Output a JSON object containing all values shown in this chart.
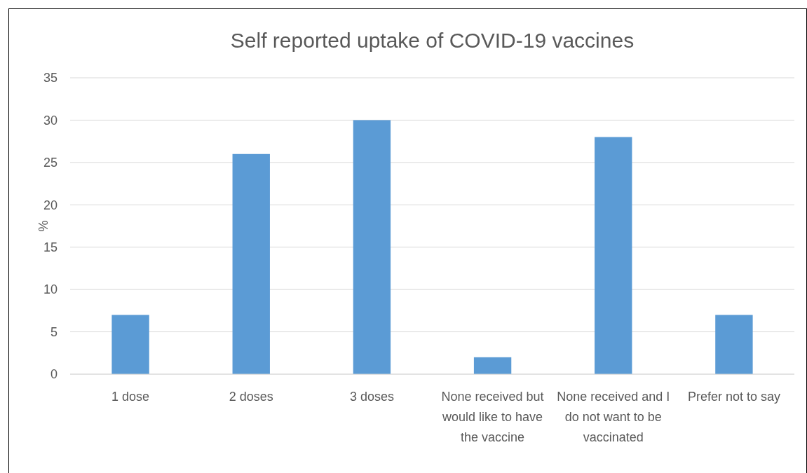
{
  "chart_data": {
    "type": "bar",
    "title": "Self reported uptake of COVID-19 vaccines",
    "ylabel": "%",
    "categories": [
      "1 dose",
      "2 doses",
      "3 doses",
      "None received but would like to have the vaccine",
      "None received and I do not want to be vaccinated",
      "Prefer not to say"
    ],
    "values": [
      7,
      26,
      30,
      2,
      28,
      7
    ],
    "color": "#5b9bd5",
    "ylim": [
      0,
      35
    ],
    "yticks": [
      0,
      5,
      10,
      15,
      20,
      25,
      30,
      35
    ],
    "grid": "y"
  }
}
